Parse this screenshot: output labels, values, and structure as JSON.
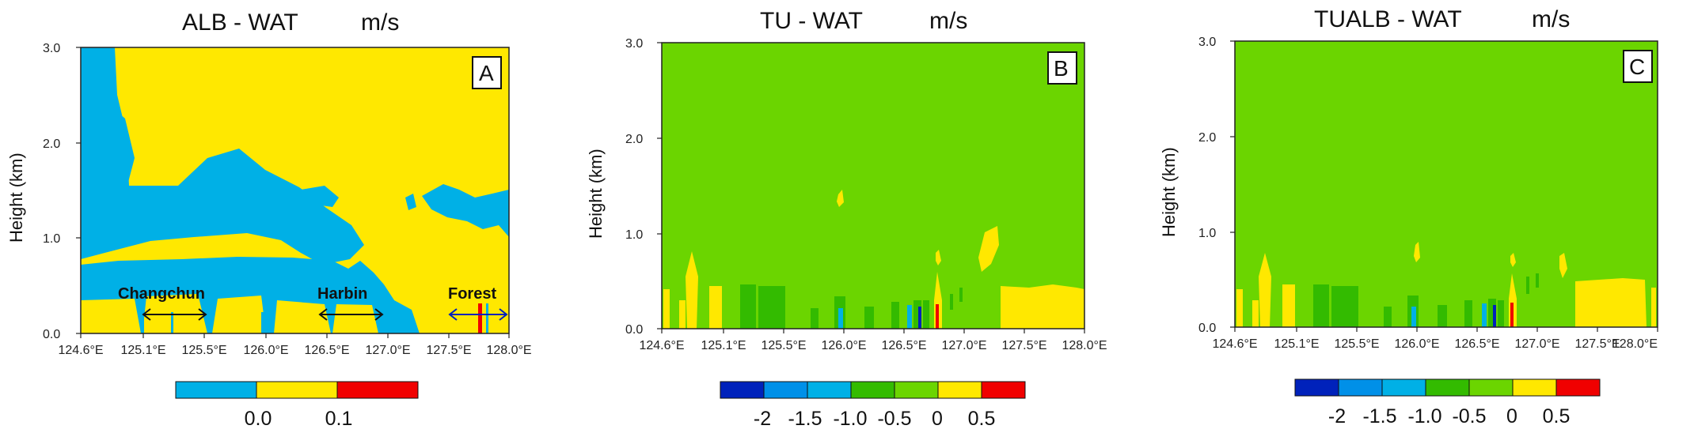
{
  "colors": {
    "blue": "#00B0E6",
    "yellow": "#FFE800",
    "red": "#F00000",
    "green": "#6BD500",
    "darkblue": "#0022BB",
    "midblue": "#0090E8",
    "darkgreen": "#33BB00"
  },
  "chart_data": [
    {
      "type": "heatmap",
      "title": "ALB - WAT",
      "unit": "m/s",
      "panel_label": "A",
      "ylabel": "Height (km)",
      "xticks": [
        "124.6°E",
        "125.1°E",
        "125.5°E",
        "126.0°E",
        "126.5°E",
        "127.0°E",
        "127.5°E",
        "128.0°E"
      ],
      "yticks": [
        "0.0",
        "1.0",
        "2.0",
        "3.0"
      ],
      "xlim": [
        124.6,
        128.0
      ],
      "ylim": [
        0,
        3
      ],
      "colorbar": {
        "tick_labels": [
          "0.0",
          "0.1"
        ],
        "colors": [
          "#00B0E6",
          "#FFE800",
          "#F00000"
        ]
      },
      "annotations": [
        "Changchun",
        "Harbin",
        "Forest"
      ]
    },
    {
      "type": "heatmap",
      "title": "TU - WAT",
      "unit": "m/s",
      "panel_label": "B",
      "ylabel": "Height (km)",
      "xticks": [
        "124.6°E",
        "125.1°E",
        "125.5°E",
        "126.0°E",
        "126.5°E",
        "127.0°E",
        "127.5°E",
        "128.0°E"
      ],
      "yticks": [
        "0.0",
        "1.0",
        "2.0",
        "3.0"
      ],
      "xlim": [
        124.6,
        128.0
      ],
      "ylim": [
        0,
        3
      ],
      "colorbar": {
        "tick_labels": [
          "-2",
          "-1.5",
          "-1.0",
          "-0.5",
          "0",
          "0.5"
        ],
        "colors": [
          "#0022BB",
          "#0090E8",
          "#00B0E6",
          "#33BB00",
          "#6BD500",
          "#FFE800",
          "#F00000"
        ]
      }
    },
    {
      "type": "heatmap",
      "title": "TUALB - WAT",
      "unit": "m/s",
      "panel_label": "C",
      "ylabel": "Height (km)",
      "xticks": [
        "124.6°E",
        "125.1°E",
        "125.5°E",
        "126.0°E",
        "126.5°E",
        "127.0°E",
        "127.5°E",
        "128.0°E"
      ],
      "yticks": [
        "0.0",
        "1.0",
        "2.0",
        "3.0"
      ],
      "xlim": [
        124.6,
        128.0
      ],
      "ylim": [
        0,
        3
      ],
      "colorbar": {
        "tick_labels": [
          "-2",
          "-1.5",
          "-1.0",
          "-0.5",
          "0",
          "0.5"
        ],
        "colors": [
          "#0022BB",
          "#0090E8",
          "#00B0E6",
          "#33BB00",
          "#6BD500",
          "#FFE800",
          "#F00000"
        ]
      }
    }
  ]
}
